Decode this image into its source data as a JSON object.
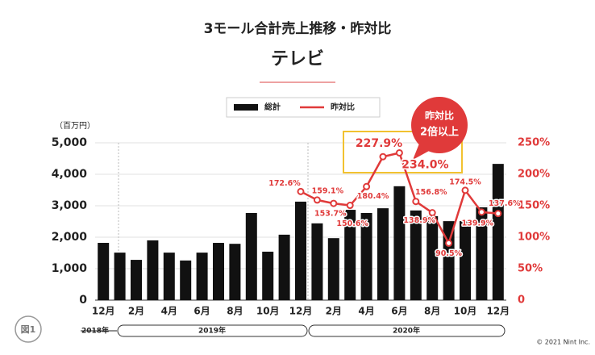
{
  "title": "3モール合計売上推移・昨対比",
  "subtitle": "テレビ",
  "unit": "（百万円）",
  "callout": [
    "昨対比",
    "2倍以上"
  ],
  "figure": "図1",
  "years": [
    "2018年",
    "2019年",
    "2020年"
  ],
  "copyright": "© 2021 Nint Inc.",
  "chart_data": {
    "type": "bar-line",
    "categories": [
      "12月",
      null,
      "2月",
      null,
      "4月",
      null,
      "6月",
      null,
      "8月",
      null,
      "10月",
      null,
      "12月",
      null,
      "2月",
      null,
      "4月",
      null,
      "6月",
      null,
      "8月",
      null,
      "10月",
      null,
      "12月"
    ],
    "series": [
      {
        "name": "総計",
        "type": "bar",
        "color": "#111111",
        "values": [
          1820,
          1510,
          1280,
          1900,
          1510,
          1260,
          1510,
          1820,
          1790,
          2770,
          1540,
          2080,
          3130,
          2440,
          1970,
          2870,
          2770,
          2920,
          3620,
          2850,
          2670,
          2510,
          2510,
          2950,
          4330
        ]
      },
      {
        "name": "昨対比",
        "type": "line",
        "axis": "y2",
        "color": "#e03a3a",
        "values": [
          null,
          null,
          null,
          null,
          null,
          null,
          null,
          null,
          null,
          null,
          null,
          null,
          172.6,
          159.1,
          153.7,
          150.6,
          180.4,
          227.9,
          234.0,
          156.8,
          138.9,
          90.5,
          174.5,
          139.9,
          137.6
        ],
        "value_labels": [
          null,
          null,
          null,
          null,
          null,
          null,
          null,
          null,
          null,
          null,
          null,
          null,
          "172.6%",
          "159.1%",
          "153.7%",
          "150.6%",
          "180.4%",
          "227.9%",
          "234.0%",
          "156.8%",
          "138.9%",
          "90.5%",
          "174.5%",
          "139.9%",
          "137.6%"
        ]
      }
    ],
    "ylim": [
      0,
      5000
    ],
    "yticks": [
      0,
      {
        "value": 1000,
        "label": "1,000"
      },
      {
        "value": 2000,
        "label": "2,000"
      },
      {
        "value": 3000,
        "label": "3,000"
      },
      {
        "value": 4000,
        "label": "4,000"
      },
      {
        "value": 5000,
        "label": "5,000"
      }
    ],
    "y2lim": [
      0,
      250
    ],
    "y2ticks": [
      0,
      {
        "value": 50,
        "label": "50%"
      },
      {
        "value": 100,
        "label": "100%"
      },
      {
        "value": 150,
        "label": "150%"
      },
      {
        "value": 200,
        "label": "200%"
      },
      {
        "value": 250,
        "label": "250%"
      }
    ],
    "grid": true
  }
}
